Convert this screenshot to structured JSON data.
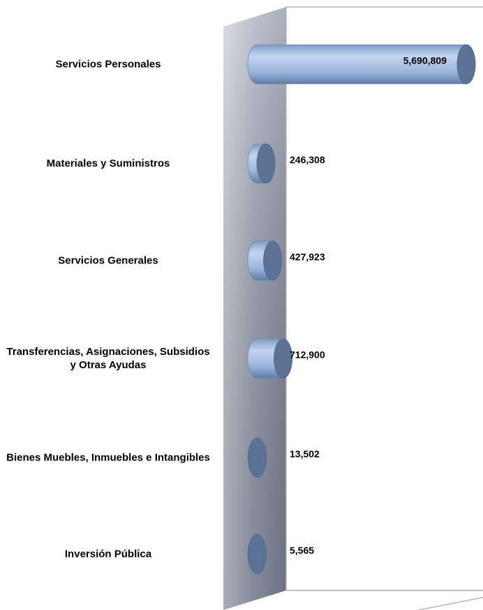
{
  "chart_data": {
    "type": "bar",
    "orientation": "horizontal",
    "categories": [
      "Servicios Personales",
      "Materiales y Suministros",
      "Servicios Generales",
      "Transferencias, Asignaciones, Subsidios y Otras Ayudas",
      "Bienes Muebles, Inmuebles e Intangibles",
      "Inversión Pública"
    ],
    "values": [
      5690809,
      246308,
      427923,
      712900,
      13502,
      5565
    ],
    "value_labels": [
      "5,690,809",
      "246,308",
      "427,923",
      "712,900",
      "13,502",
      "5,565"
    ],
    "color": "#9fbbe2"
  }
}
